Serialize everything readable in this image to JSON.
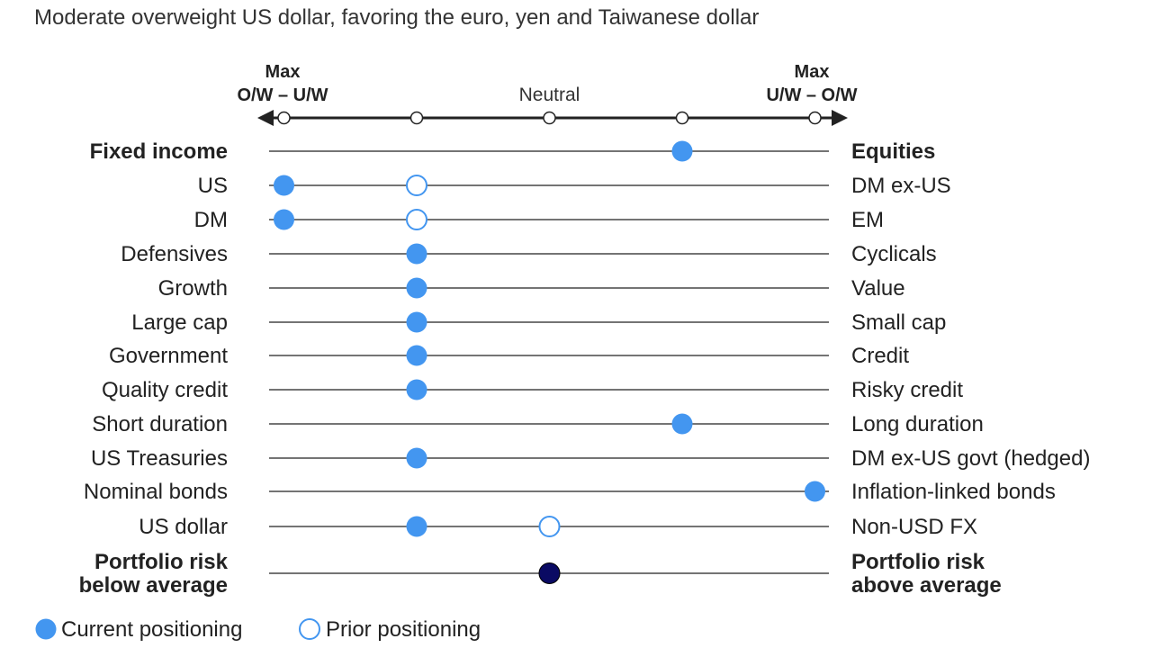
{
  "subtitle": "Moderate overweight US dollar, favoring the euro, yen and Taiwanese dollar",
  "chart_data": {
    "type": "scatter",
    "scale": {
      "positions": [
        -2,
        -1,
        0,
        1,
        2
      ],
      "left_end_label": [
        "Max",
        "O/W – U/W"
      ],
      "center_label": "Neutral",
      "right_end_label": [
        "Max",
        "U/W – O/W"
      ]
    },
    "rows": [
      {
        "left": [
          "Fixed income"
        ],
        "right": [
          "Equities"
        ],
        "bold": true,
        "current": 1,
        "prior": null
      },
      {
        "left": [
          "US"
        ],
        "right": [
          "DM ex-US"
        ],
        "bold": false,
        "current": -2,
        "prior": -1
      },
      {
        "left": [
          "DM"
        ],
        "right": [
          "EM"
        ],
        "bold": false,
        "current": -2,
        "prior": -1
      },
      {
        "left": [
          "Defensives"
        ],
        "right": [
          "Cyclicals"
        ],
        "bold": false,
        "current": -1,
        "prior": null
      },
      {
        "left": [
          "Growth"
        ],
        "right": [
          "Value"
        ],
        "bold": false,
        "current": -1,
        "prior": null
      },
      {
        "left": [
          "Large cap"
        ],
        "right": [
          "Small cap"
        ],
        "bold": false,
        "current": -1,
        "prior": null
      },
      {
        "left": [
          "Government"
        ],
        "right": [
          "Credit"
        ],
        "bold": false,
        "current": -1,
        "prior": null
      },
      {
        "left": [
          "Quality credit"
        ],
        "right": [
          "Risky credit"
        ],
        "bold": false,
        "current": -1,
        "prior": null
      },
      {
        "left": [
          "Short duration"
        ],
        "right": [
          "Long duration"
        ],
        "bold": false,
        "current": 1,
        "prior": null
      },
      {
        "left": [
          "US Treasuries"
        ],
        "right": [
          "DM ex-US govt (hedged)"
        ],
        "bold": false,
        "current": -1,
        "prior": null
      },
      {
        "left": [
          "Nominal bonds"
        ],
        "right": [
          "Inflation-linked bonds"
        ],
        "bold": false,
        "current": 2,
        "prior": null
      },
      {
        "left": [
          "US dollar"
        ],
        "right": [
          "Non-USD FX"
        ],
        "bold": false,
        "current": -1,
        "prior": 0
      },
      {
        "left": [
          "Portfolio risk",
          "below average"
        ],
        "right": [
          "Portfolio risk",
          "above average"
        ],
        "bold": true,
        "current": 0,
        "prior": null,
        "risk": true
      }
    ],
    "legend": {
      "current": "Current positioning",
      "prior": "Prior positioning",
      "placement": "bottom-left"
    },
    "colors": {
      "current": "#4396f0",
      "risk": "#0a0a63",
      "prior_stroke": "#4396f0",
      "line": "#222222"
    }
  }
}
